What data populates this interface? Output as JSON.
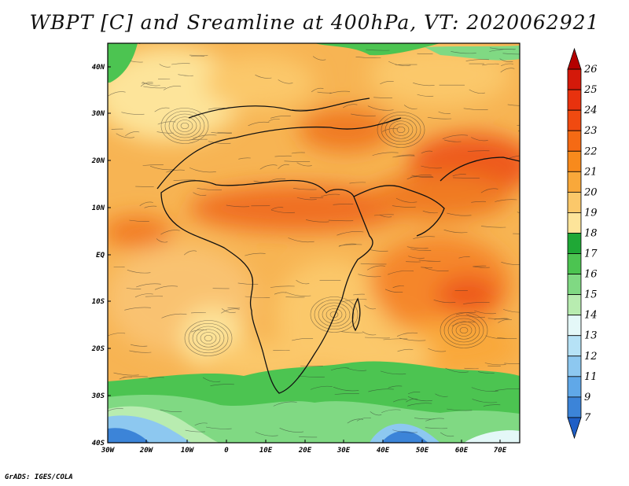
{
  "title": "WBPT [C] and Sreamline at 400hPa, VT: 2020062921",
  "credit": "GrADS: IGES/COLA",
  "map": {
    "lat_labels": [
      "40N",
      "30N",
      "20N",
      "10N",
      "EQ",
      "10S",
      "20S",
      "30S",
      "40S"
    ],
    "lon_labels": [
      "30W",
      "20W",
      "10W",
      "0",
      "10E",
      "20E",
      "30E",
      "40E",
      "50E",
      "60E",
      "70E"
    ],
    "lat_range": [
      -40,
      45
    ],
    "lon_range": [
      -30,
      72
    ],
    "field": "wet-bulb potential temperature",
    "overlay": "streamlines"
  },
  "colorbar": {
    "levels": [
      "26",
      "25",
      "24",
      "23",
      "22",
      "21",
      "20",
      "19",
      "18",
      "17",
      "16",
      "15",
      "14",
      "13",
      "12",
      "11",
      "9",
      "7"
    ],
    "colors": [
      "#b40000",
      "#d4190a",
      "#e8320e",
      "#f04a10",
      "#f56a14",
      "#f88a1c",
      "#f9a83a",
      "#fbc86a",
      "#fde49a",
      "#1fa836",
      "#4cc451",
      "#80d983",
      "#b8ecb0",
      "#e4f8f8",
      "#b6e2f6",
      "#8dc8f0",
      "#60a8e8",
      "#3c84d8",
      "#1f5fc6"
    ]
  }
}
